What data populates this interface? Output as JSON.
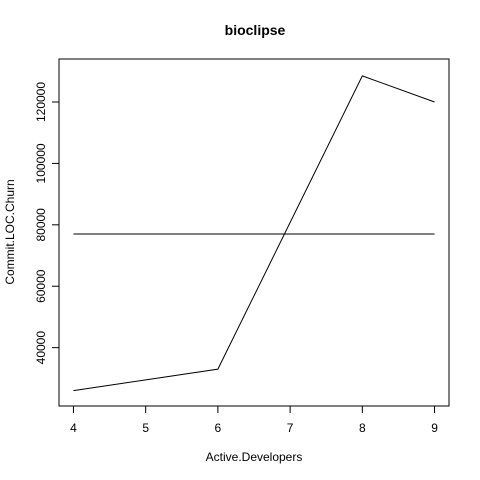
{
  "chart_data": {
    "type": "line",
    "title": "bioclipse",
    "xlabel": "Active.Developers",
    "ylabel": "Commit.LOC.Churn",
    "xlim": [
      3.8,
      9.2
    ],
    "ylim": [
      21000,
      134000
    ],
    "x_ticks": [
      4,
      5,
      6,
      7,
      8,
      9
    ],
    "y_ticks": [
      40000,
      60000,
      80000,
      100000,
      120000
    ],
    "grid": false,
    "legend": "none",
    "series": [
      {
        "x": [
          4,
          6,
          8,
          9
        ],
        "values": [
          26000,
          33000,
          128500,
          120000
        ],
        "color": "#000000"
      },
      {
        "x": [
          4,
          9
        ],
        "values": [
          77000,
          77000
        ],
        "color": "#000000"
      }
    ]
  }
}
